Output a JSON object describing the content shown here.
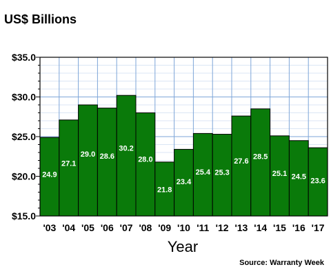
{
  "chart_data": {
    "type": "bar",
    "categories": [
      "'03",
      "'04",
      "'05",
      "'06",
      "'07",
      "'08",
      "'09",
      "'10",
      "'11",
      "'12",
      "'13",
      "'14",
      "'15",
      "'16",
      "'17"
    ],
    "values": [
      24.9,
      27.1,
      29.0,
      28.6,
      30.2,
      28.0,
      21.8,
      23.4,
      25.4,
      25.3,
      27.6,
      28.5,
      25.1,
      24.5,
      23.6
    ],
    "data_labels": [
      "24.9",
      "27.1",
      "29.0",
      "28.6",
      "30.2",
      "28.0",
      "21.8",
      "23.4",
      "25.4",
      "25.3",
      "27.6",
      "28.5",
      "25.1",
      "24.5",
      "23.6"
    ],
    "ylabel": "US$ Billions",
    "xlabel": "Year",
    "ylim": [
      15,
      35
    ],
    "yticks": [
      15,
      20,
      25,
      30,
      35
    ],
    "ytick_labels": [
      "$15.0",
      "$20.0",
      "$25.0",
      "$30.0",
      "$35.0"
    ],
    "grid": true,
    "bar_color": "#0a7a0a",
    "grid_color": "#7ea6d8",
    "source_text": "Source: Warranty Week"
  }
}
